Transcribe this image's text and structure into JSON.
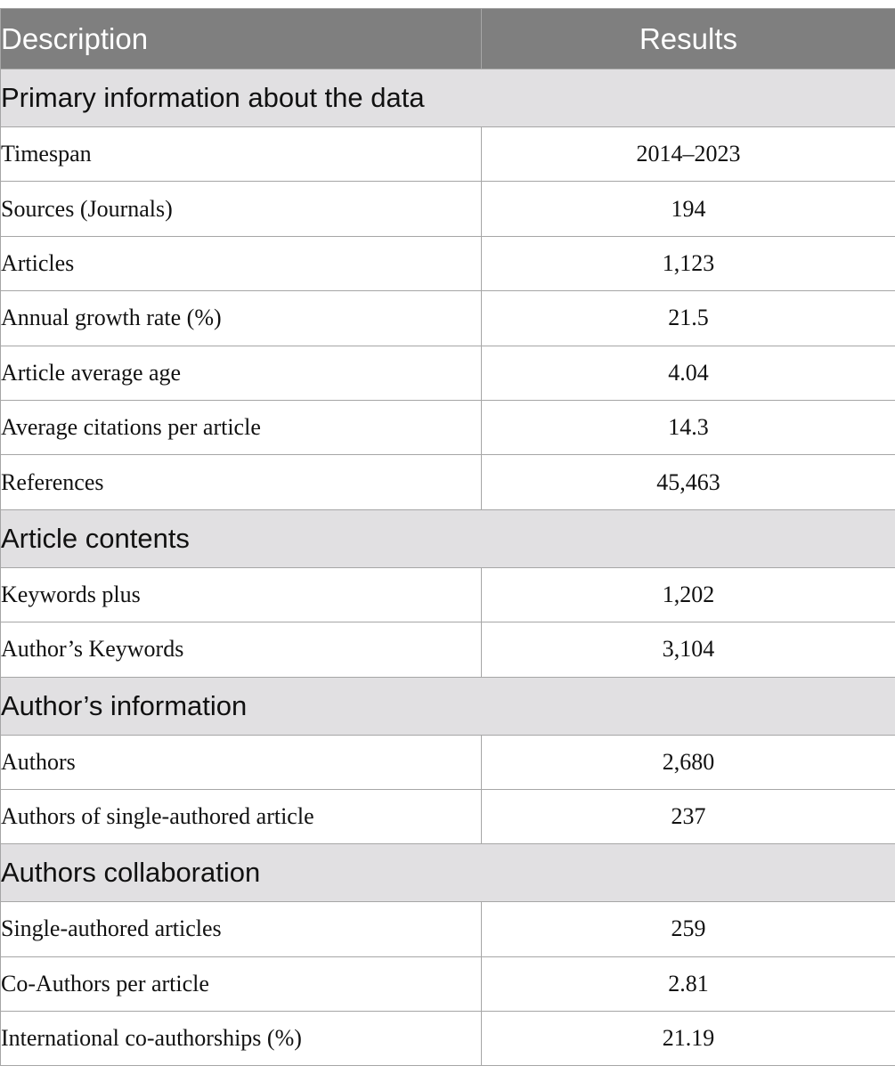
{
  "table": {
    "headers": {
      "description": "Description",
      "results": "Results"
    },
    "sections": [
      {
        "title": "Primary information about the data",
        "rows": [
          {
            "description": "Timespan",
            "result": "2014–2023"
          },
          {
            "description": "Sources (Journals)",
            "result": "194"
          },
          {
            "description": "Articles",
            "result": "1,123"
          },
          {
            "description": "Annual growth rate (%)",
            "result": "21.5"
          },
          {
            "description": "Article average age",
            "result": "4.04"
          },
          {
            "description": "Average citations per article",
            "result": "14.3"
          },
          {
            "description": "References",
            "result": "45,463"
          }
        ]
      },
      {
        "title": "Article contents",
        "rows": [
          {
            "description": "Keywords plus",
            "result": "1,202"
          },
          {
            "description": "Author’s Keywords",
            "result": "3,104"
          }
        ]
      },
      {
        "title": "Author’s information",
        "rows": [
          {
            "description": "Authors",
            "result": "2,680"
          },
          {
            "description": "Authors of single-authored article",
            "result": "237"
          }
        ]
      },
      {
        "title": "Authors collaboration",
        "rows": [
          {
            "description": "Single-authored articles",
            "result": "259"
          },
          {
            "description": "Co-Authors per article",
            "result": "2.81"
          },
          {
            "description": "International co-authorships (%)",
            "result": "21.19"
          }
        ]
      }
    ]
  }
}
